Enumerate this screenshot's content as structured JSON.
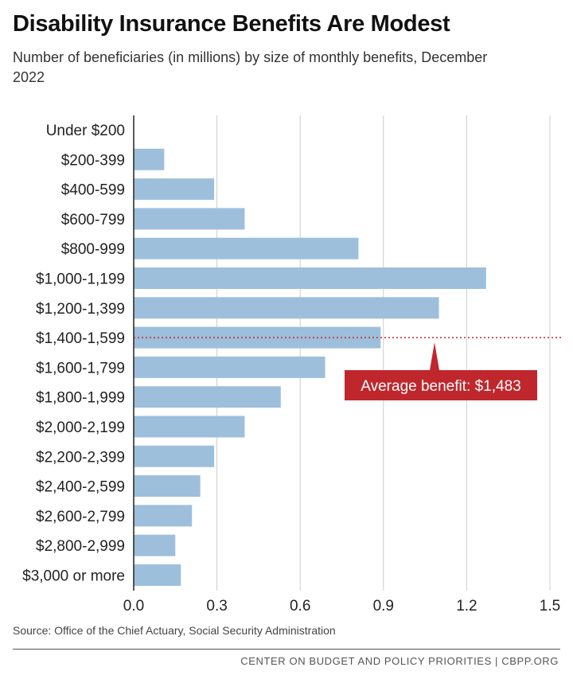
{
  "chart_data": {
    "type": "bar",
    "orientation": "horizontal",
    "title": "Disability Insurance Benefits Are Modest",
    "subtitle": "Number of beneficiaries (in millions) by size of monthly benefits, December 2022",
    "categories": [
      "Under $200",
      "$200-399",
      "$400-599",
      "$600-799",
      "$800-999",
      "$1,000-1,199",
      "$1,200-1,399",
      "$1,400-1,599",
      "$1,600-1,799",
      "$1,800-1,999",
      "$2,000-2,199",
      "$2,200-2,399",
      "$2,400-2,599",
      "$2,600-2,799",
      "$2,800-2,999",
      "$3,000 or more"
    ],
    "values": [
      0.0,
      0.11,
      0.29,
      0.4,
      0.81,
      1.27,
      1.1,
      0.89,
      0.69,
      0.53,
      0.4,
      0.29,
      0.24,
      0.21,
      0.15,
      0.17
    ],
    "xlim": [
      0,
      1.5
    ],
    "xticks": [
      "0.0",
      "0.3",
      "0.6",
      "0.9",
      "1.2",
      "1.5"
    ],
    "xtick_values": [
      0,
      0.3,
      0.6,
      0.9,
      1.2,
      1.5
    ],
    "grid": true,
    "bar_color": "#9ebfdc",
    "annotation": {
      "text": "Average benefit: $1,483",
      "category": "$1,400-1,599",
      "color": "#c0272d"
    }
  },
  "source": "Source: Office of the Chief Actuary, Social Security Administration",
  "footer": "CENTER ON BUDGET AND POLICY PRIORITIES | CBPP.ORG"
}
